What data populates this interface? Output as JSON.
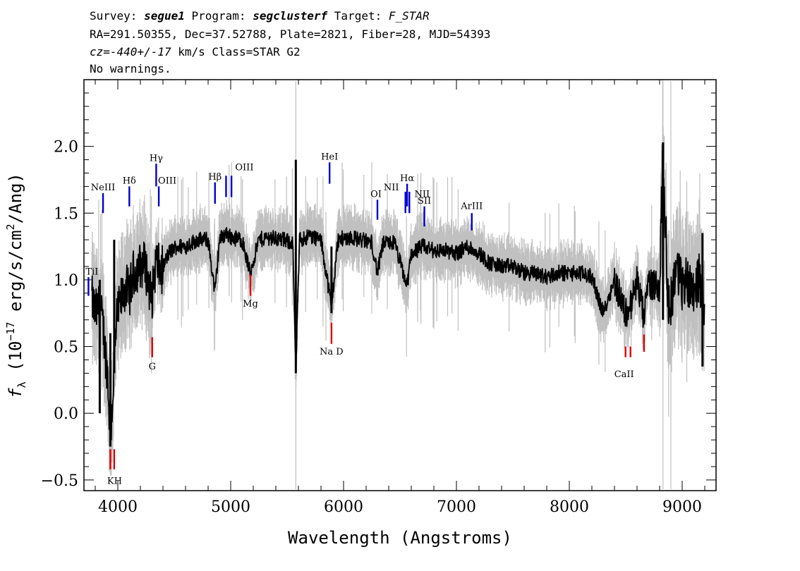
{
  "header": {
    "line1": {
      "survey_label": "Survey: ",
      "survey": "segue1",
      "program_label": " Program: ",
      "program": "segclusterf",
      "target_label": " Target: ",
      "target": "F_STAR"
    },
    "line2": "RA=291.50355, Dec=37.52788, Plate=2821, Fiber=28, MJD=54393",
    "line3": {
      "cz_label": "cz=",
      "cz": "-440+/-17",
      "cz_unit": " km/s Class=STAR G2"
    },
    "line4": "No warnings."
  },
  "colors": {
    "flux": "#000000",
    "error_band": "#c0c0c0",
    "emission": "#0000cc",
    "absorption": "#dd0000"
  },
  "chart_data": {
    "type": "line",
    "xlabel": "Wavelength (Angstroms)",
    "ylabel": "f_λ (10^-17 erg/s/cm^2/Ang)",
    "ylabel_parts": {
      "f": "f",
      "lambda": "λ",
      "open": " (10",
      "exp": "−17",
      "mid": " erg/s/cm",
      "sq": "2",
      "close": "/Ang)"
    },
    "xlim": [
      3700,
      9300
    ],
    "ylim": [
      -0.58,
      2.5
    ],
    "x_ticks": [
      4000,
      5000,
      6000,
      7000,
      8000,
      9000
    ],
    "x_tick_labels": [
      "4000",
      "5000",
      "6000",
      "7000",
      "8000",
      "9000"
    ],
    "y_ticks": [
      -0.5,
      0.0,
      0.5,
      1.0,
      1.5,
      2.0
    ],
    "y_tick_labels": [
      "−0.5",
      "0.0",
      "0.5",
      "1.0",
      "1.5",
      "2.0"
    ],
    "x_minor_step": 200,
    "y_minor_step": 0.1,
    "spectrum": {
      "x": [
        3760,
        3800,
        3840,
        3870,
        3890,
        3910,
        3934,
        3950,
        3968,
        3990,
        4030,
        4070,
        4102,
        4140,
        4190,
        4240,
        4300,
        4340,
        4380,
        4450,
        4520,
        4600,
        4700,
        4800,
        4861,
        4900,
        4960,
        5000,
        5100,
        5172,
        5250,
        5350,
        5450,
        5550,
        5577,
        5610,
        5700,
        5800,
        5893,
        5950,
        6050,
        6150,
        6250,
        6300,
        6350,
        6450,
        6563,
        6600,
        6700,
        6800,
        6900,
        7000,
        7100,
        7200,
        7300,
        7400,
        7500,
        7600,
        7700,
        7800,
        7900,
        8000,
        8100,
        8200,
        8300,
        8400,
        8498,
        8542,
        8600,
        8662,
        8700,
        8800,
        8830,
        8880,
        8950,
        9000,
        9050,
        9100,
        9150,
        9200
      ],
      "y": [
        0.9,
        0.75,
        0.8,
        0.65,
        0.45,
        0.3,
        -0.2,
        0.05,
        0.35,
        0.7,
        0.85,
        0.95,
        0.9,
        1.05,
        1.1,
        1.12,
        0.85,
        1.15,
        1.05,
        1.2,
        1.25,
        1.25,
        1.3,
        1.3,
        0.9,
        1.3,
        1.35,
        1.32,
        1.3,
        1.05,
        1.3,
        1.32,
        1.3,
        1.28,
        0.3,
        1.3,
        1.33,
        1.3,
        0.8,
        1.3,
        1.32,
        1.3,
        1.28,
        1.05,
        1.27,
        1.28,
        0.95,
        1.2,
        1.25,
        1.22,
        1.22,
        1.2,
        1.25,
        1.2,
        1.12,
        1.1,
        1.1,
        1.05,
        1.05,
        1.02,
        1.05,
        1.05,
        1.05,
        1.02,
        0.75,
        1.0,
        0.75,
        0.8,
        1.0,
        0.7,
        0.98,
        0.95,
        1.95,
        0.75,
        1.1,
        0.95,
        1.0,
        0.95,
        1.0,
        0.8
      ]
    },
    "spikes": [
      {
        "x": 3840,
        "y1": 0.0,
        "y2": 1.0
      },
      {
        "x": 3934,
        "y1": -0.25,
        "y2": 0.6
      },
      {
        "x": 3968,
        "y1": 0.3,
        "y2": 1.3
      },
      {
        "x": 5577,
        "y1": 0.3,
        "y2": 1.9
      },
      {
        "x": 5893,
        "y1": 0.75,
        "y2": 1.25
      },
      {
        "x": 8830,
        "y1": 0.7,
        "y2": 2.03
      },
      {
        "x": 9180,
        "y1": 0.35,
        "y2": 1.35
      }
    ],
    "lines": [
      {
        "label": "TiI",
        "x": 3740,
        "y1": 0.88,
        "y2": 1.02,
        "kind": "emission",
        "label_y": 1.04
      },
      {
        "label": "NeIII",
        "x": 3869,
        "y1": 1.5,
        "y2": 1.65,
        "kind": "emission",
        "label_y": 1.67
      },
      {
        "label": "Hδ",
        "x": 4102,
        "y1": 1.55,
        "y2": 1.7,
        "kind": "emission",
        "label_y": 1.72
      },
      {
        "label": "Hγ",
        "x": 4340,
        "y1": 1.7,
        "y2": 1.87,
        "kind": "emission",
        "label_y": 1.89
      },
      {
        "label": "OIII",
        "x": 4363,
        "y1": 1.55,
        "y2": 1.7,
        "kind": "emission",
        "label_y": 1.72
      },
      {
        "label": "Hβ",
        "x": 4861,
        "y1": 1.57,
        "y2": 1.73,
        "kind": "emission",
        "label_y": 1.75
      },
      {
        "label": "OIII",
        "x": 4959,
        "y1": 1.62,
        "y2": 1.78,
        "kind": "emission",
        "label_y": 1.82
      },
      {
        "label": "",
        "x": 5007,
        "y1": 1.62,
        "y2": 1.78,
        "kind": "emission",
        "label_y": 0
      },
      {
        "label": "HeI",
        "x": 5876,
        "y1": 1.72,
        "y2": 1.88,
        "kind": "emission",
        "label_y": 1.9
      },
      {
        "label": "OI",
        "x": 6300,
        "y1": 1.45,
        "y2": 1.6,
        "kind": "emission",
        "label_y": 1.62
      },
      {
        "label": "NII",
        "x": 6548,
        "y1": 1.5,
        "y2": 1.66,
        "kind": "emission",
        "label_y": 1.67
      },
      {
        "label": "Hα",
        "x": 6563,
        "y1": 1.55,
        "y2": 1.72,
        "kind": "emission",
        "label_y": 1.74
      },
      {
        "label": "NII",
        "x": 6583,
        "y1": 1.5,
        "y2": 1.66,
        "kind": "emission",
        "label_y": 1.62
      },
      {
        "label": "SII",
        "x": 6716,
        "y1": 1.4,
        "y2": 1.55,
        "kind": "emission",
        "label_y": 1.57
      },
      {
        "label": "ArIII",
        "x": 7136,
        "y1": 1.37,
        "y2": 1.5,
        "kind": "emission",
        "label_y": 1.53
      },
      {
        "label": "KH",
        "x": 3934,
        "y1": -0.42,
        "y2": -0.27,
        "kind": "absorption",
        "label_y": -0.53
      },
      {
        "label": "",
        "x": 3968,
        "y1": -0.42,
        "y2": -0.27,
        "kind": "absorption",
        "label_y": 0
      },
      {
        "label": "G",
        "x": 4305,
        "y1": 0.42,
        "y2": 0.57,
        "kind": "absorption",
        "label_y": 0.33
      },
      {
        "label": "Mg",
        "x": 5175,
        "y1": 0.88,
        "y2": 1.04,
        "kind": "absorption",
        "label_y": 0.8
      },
      {
        "label": "Na D",
        "x": 5893,
        "y1": 0.52,
        "y2": 0.68,
        "kind": "absorption",
        "label_y": 0.44
      },
      {
        "label": "CaII",
        "x": 8498,
        "y1": 0.42,
        "y2": 0.5,
        "kind": "absorption",
        "label_y": 0.27
      },
      {
        "label": "",
        "x": 8542,
        "y1": 0.42,
        "y2": 0.5,
        "kind": "absorption",
        "label_y": 0
      },
      {
        "label": "",
        "x": 8662,
        "y1": 0.46,
        "y2": 0.59,
        "kind": "absorption",
        "label_y": 0
      }
    ]
  }
}
